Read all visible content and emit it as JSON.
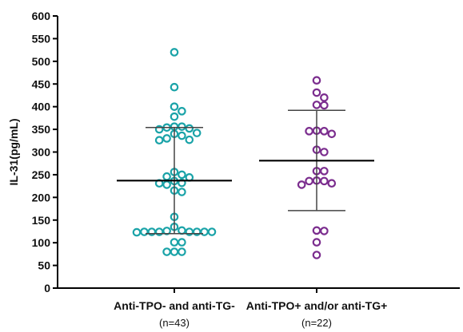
{
  "chart_data": {
    "type": "scatter",
    "ylabel": "IL-31(pg/mL)",
    "xlabel": "",
    "ylim": [
      0,
      600
    ],
    "yticks": [
      0,
      50,
      100,
      150,
      200,
      250,
      300,
      350,
      400,
      450,
      500,
      550,
      600
    ],
    "grid": false,
    "groups": [
      {
        "label": "Anti-TPO- and anti-TG-",
        "n_label": "(n=43)",
        "color": "#1aa3a8",
        "mean": 237,
        "sd_upper": 354,
        "sd_lower": 120,
        "values": [
          520,
          443,
          400,
          390,
          378,
          350,
          356,
          356,
          352,
          354,
          340,
          342,
          336,
          330,
          327,
          326,
          256,
          246,
          250,
          244,
          236,
          232,
          231,
          228,
          215,
          212,
          157,
          135,
          127,
          124,
          123,
          124,
          124,
          124,
          124,
          124,
          124,
          126,
          101,
          101,
          80,
          80,
          80
        ]
      },
      {
        "label": "Anti-TPO+ and/or anti-TG+",
        "n_label": "(n=22)",
        "color": "#7b2d8e",
        "mean": 281,
        "sd_upper": 392,
        "sd_lower": 171,
        "values": [
          458,
          431,
          420,
          404,
          403,
          346,
          347,
          346,
          340,
          305,
          300,
          258,
          258,
          237,
          236,
          236,
          228,
          231,
          127,
          126,
          101,
          73
        ]
      }
    ]
  }
}
